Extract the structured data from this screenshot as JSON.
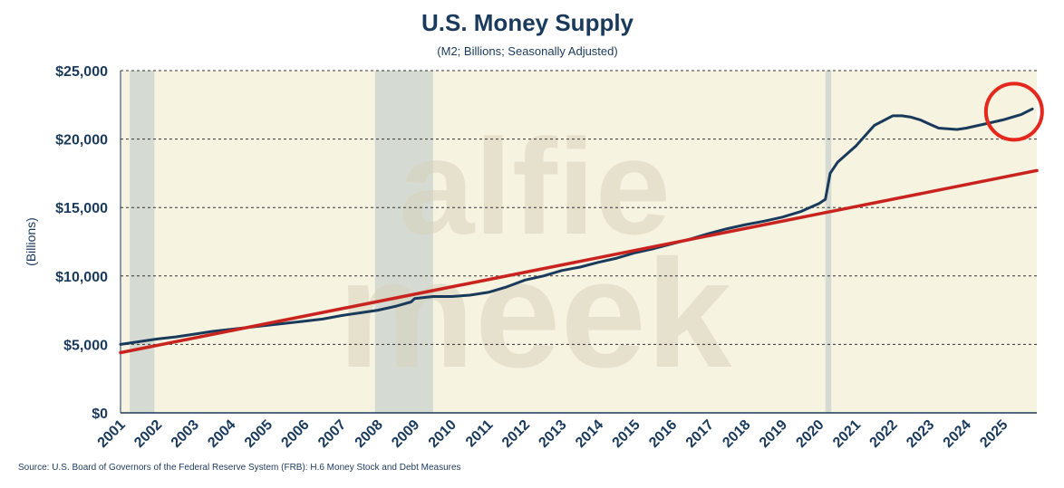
{
  "chart_data": {
    "type": "line",
    "title": "U.S. Money Supply",
    "subtitle": "(M2; Billions; Seasonally Adjusted)",
    "ylabel": "(Billions)",
    "xlabel": "",
    "source": "Source: U.S. Board of Governors of the Federal Reserve System (FRB): H.6 Money Stock and Debt Measures",
    "watermark_lines": [
      "alfie",
      "meek"
    ],
    "xlim": [
      2001.0,
      2025.92
    ],
    "ylim": [
      0,
      25000
    ],
    "yticks": [
      0,
      5000,
      10000,
      15000,
      20000,
      25000
    ],
    "ytick_labels": [
      "$0",
      "$5,000",
      "$10,000",
      "$15,000",
      "$20,000",
      "$25,000"
    ],
    "xtick_labels": [
      "2001",
      "2002",
      "2003",
      "2004",
      "2005",
      "2006",
      "2007",
      "2008",
      "2009",
      "2010",
      "2011",
      "2012",
      "2013",
      "2014",
      "2015",
      "2016",
      "2017",
      "2018",
      "2019",
      "2020",
      "2021",
      "2022",
      "2023",
      "2024",
      "2025"
    ],
    "grid": "horizontal dashed",
    "recessions": [
      {
        "start": 2001.25,
        "end": 2001.92
      },
      {
        "start": 2007.92,
        "end": 2009.5
      },
      {
        "start": 2020.17,
        "end": 2020.33
      }
    ],
    "series": [
      {
        "name": "M2",
        "color": "#1a3a5c",
        "x": [
          2001.0,
          2001.5,
          2002.0,
          2002.5,
          2003.0,
          2003.5,
          2004.0,
          2004.5,
          2005.0,
          2005.5,
          2006.0,
          2006.5,
          2007.0,
          2007.5,
          2008.0,
          2008.5,
          2008.9,
          2009.0,
          2009.5,
          2010.0,
          2010.5,
          2011.0,
          2011.5,
          2012.0,
          2012.5,
          2013.0,
          2013.5,
          2014.0,
          2014.5,
          2015.0,
          2015.5,
          2016.0,
          2016.5,
          2017.0,
          2017.5,
          2018.0,
          2018.5,
          2019.0,
          2019.5,
          2020.0,
          2020.17,
          2020.3,
          2020.5,
          2021.0,
          2021.5,
          2022.0,
          2022.25,
          2022.5,
          2022.75,
          2023.0,
          2023.25,
          2023.5,
          2023.75,
          2024.0,
          2024.5,
          2025.0,
          2025.5,
          2025.8
        ],
        "values": [
          5000,
          5200,
          5400,
          5550,
          5750,
          5950,
          6100,
          6250,
          6400,
          6550,
          6700,
          6850,
          7100,
          7300,
          7500,
          7800,
          8100,
          8350,
          8500,
          8500,
          8600,
          8800,
          9200,
          9700,
          10000,
          10400,
          10650,
          11000,
          11300,
          11700,
          12000,
          12350,
          12700,
          13100,
          13450,
          13750,
          14000,
          14300,
          14700,
          15300,
          15600,
          17500,
          18300,
          19500,
          21000,
          21700,
          21700,
          21600,
          21400,
          21100,
          20800,
          20750,
          20700,
          20800,
          21100,
          21400,
          21800,
          22200
        ]
      },
      {
        "name": "Trend",
        "color": "#c8231e",
        "x": [
          2001.0,
          2025.92
        ],
        "values": [
          4400,
          17700
        ]
      }
    ],
    "annotations": [
      {
        "type": "circle",
        "color": "#e4281e",
        "x": 2025.3,
        "y": 22000
      }
    ]
  }
}
